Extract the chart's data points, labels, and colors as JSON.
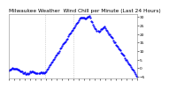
{
  "title": "Milwaukee Weather  Wind Chill per Minute (Last 24 Hours)",
  "line_color": "#0000ff",
  "bg_color": "#ffffff",
  "plot_bg_color": "#ffffff",
  "grid_color": "#b0b0b0",
  "ylim": [
    -6,
    32
  ],
  "yticks": [
    -5,
    0,
    5,
    10,
    15,
    20,
    25,
    30
  ],
  "vlines_x": [
    0.28,
    0.5
  ],
  "linewidth": 0.7,
  "markersize": 1.2,
  "title_fontsize": 4.2,
  "tick_fontsize": 3.2,
  "n_points": 144
}
